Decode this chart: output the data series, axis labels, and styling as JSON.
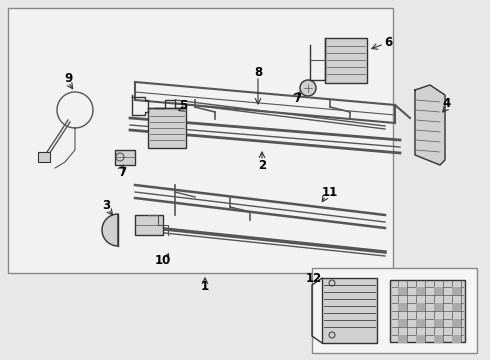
{
  "bg_color": "#e8e8e8",
  "box_bg": "#f2f2f2",
  "line_color": "#555555",
  "dark_line": "#333333",
  "part_fill": "#d0d0d0",
  "text_color": "#000000",
  "arrow_color": "#333333"
}
